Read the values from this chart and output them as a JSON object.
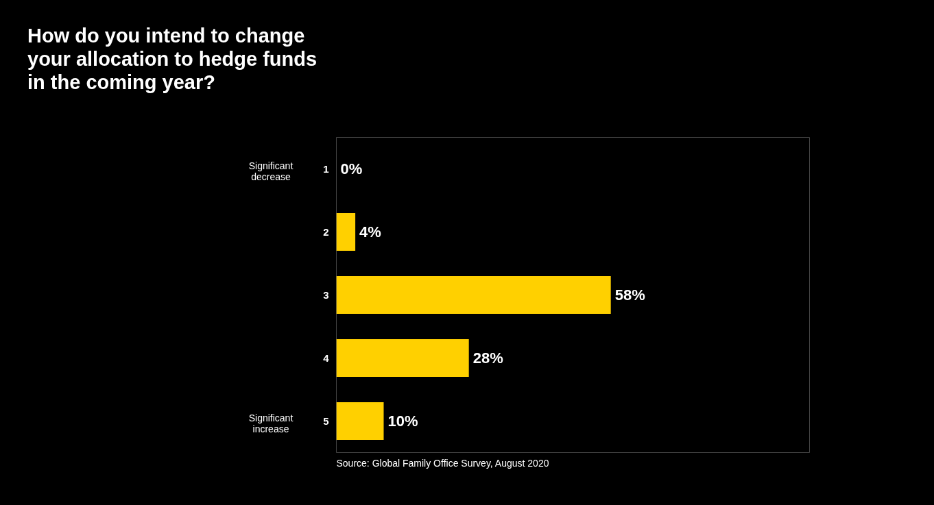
{
  "chart_data": {
    "type": "bar",
    "orientation": "horizontal",
    "title": "How do you intend to change\nyour allocation to hedge funds\nin the coming year?",
    "categories": [
      "1",
      "2",
      "3",
      "4",
      "5"
    ],
    "values": [
      0,
      4,
      58,
      28,
      10
    ],
    "color": "#ffd000",
    "xlim": [
      0,
      100
    ],
    "tick_labels": "y",
    "grid": false,
    "value_labels": [
      "0%",
      "4%",
      "58%",
      "28%",
      "10%"
    ],
    "annotations": [
      "Significant decrease",
      "Significant increase",
      "Source: Global Family Office Survey, August 2020"
    ]
  }
}
